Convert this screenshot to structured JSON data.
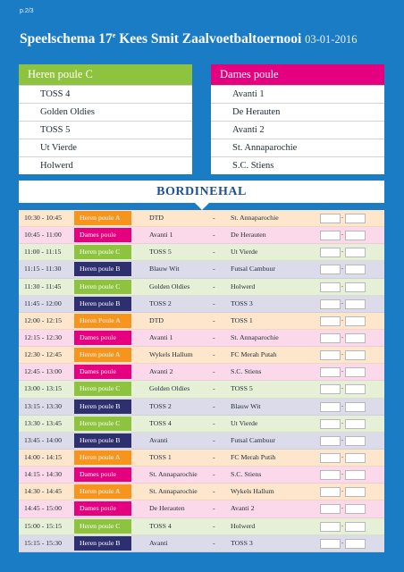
{
  "page_label": "p.2/3",
  "title": {
    "main": "Speelschema 17",
    "sup": "e",
    "rest": " Kees Smit Zaalvoetbaltoernooi ",
    "date": "03-01-2016"
  },
  "poules": {
    "left": {
      "name": "Heren poule C",
      "color": "#8dc33e",
      "teams": [
        "TOSS 4",
        "Golden Oldies",
        "TOSS 5",
        "Ut Vierde",
        "Holwerd"
      ]
    },
    "right": {
      "name": "Dames poule",
      "color": "#e4007f",
      "teams": [
        "Avanti 1",
        "De Herauten",
        "Avanti 2",
        "St. Annaparochie",
        "S.C. Stiens"
      ]
    }
  },
  "hall": "BORDINEHAL",
  "poule_colors": {
    "A": "#f7941d",
    "C": "#8dc33e",
    "B": "#2e2f6e",
    "D": "#e4007f"
  },
  "row_tints": {
    "A": "#fde6cc",
    "C": "#e6f0d6",
    "B": "#dcdbea",
    "D": "#fbd9ea"
  },
  "matches": [
    {
      "time": "10:30  -  10:45",
      "poule": "Heren poule A",
      "k": "A",
      "home": "DTD",
      "away": "St. Annaparochie"
    },
    {
      "time": "10:45  -  11:00",
      "poule": "Dames poule",
      "k": "D",
      "home": "Avanti 1",
      "away": "De Herauten"
    },
    {
      "time": "11:00  -  11:15",
      "poule": "Heren poule C",
      "k": "C",
      "home": "TOSS 5",
      "away": "Ut Vierde"
    },
    {
      "time": "11:15  -  11:30",
      "poule": "Heren poule B",
      "k": "B",
      "home": "Blauw Wit",
      "away": "Futsal Cambuur"
    },
    {
      "time": "11:30  -  11:45",
      "poule": "Heren poule C",
      "k": "C",
      "home": "Golden Oldies",
      "away": "Holwerd"
    },
    {
      "time": "11:45  -  12:00",
      "poule": "Heren poule B",
      "k": "B",
      "home": "TOSS 2",
      "away": "TOSS 3"
    },
    {
      "time": "12:00  -  12:15",
      "poule": "Heren Poule A",
      "k": "A",
      "home": "DTD",
      "away": "TOSS 1"
    },
    {
      "time": "12:15  -  12:30",
      "poule": "Dames poule",
      "k": "D",
      "home": "Avanti 1",
      "away": "St. Annaparochie"
    },
    {
      "time": "12:30  -  12:45",
      "poule": "Heren poule A",
      "k": "A",
      "home": "Wykels Hallum",
      "away": "FC Merah Putah"
    },
    {
      "time": "12:45  -  13:00",
      "poule": "Dames poule",
      "k": "D",
      "home": "Avanti 2",
      "away": "S.C. Stiens"
    },
    {
      "time": "13:00  -  13:15",
      "poule": "Heren poule C",
      "k": "C",
      "home": "Golden Oldies",
      "away": "TOSS 5"
    },
    {
      "time": "13:15  -  13:30",
      "poule": "Heren poule B",
      "k": "B",
      "home": "TOSS 2",
      "away": "Blauw Wit"
    },
    {
      "time": "13:30  -  13:45",
      "poule": "Heren poule C",
      "k": "C",
      "home": "TOSS 4",
      "away": "Ut Vierde"
    },
    {
      "time": "13:45  -  14:00",
      "poule": "Heren poule B",
      "k": "B",
      "home": "Avanti",
      "away": "Futsal Cambuur"
    },
    {
      "time": "14:00  -  14:15",
      "poule": "Heren poule A",
      "k": "A",
      "home": "TOSS 1",
      "away": "FC Merah Putih"
    },
    {
      "time": "14:15  -  14:30",
      "poule": "Dames poule",
      "k": "D",
      "home": "St. Annaparochie",
      "away": "S.C. Stiens"
    },
    {
      "time": "14:30  -  14:45",
      "poule": "Heren poule A",
      "k": "A",
      "home": "St. Annaparochie",
      "away": "Wykels Hallum"
    },
    {
      "time": "14:45  -  15:00",
      "poule": "Dames poule",
      "k": "D",
      "home": "De Herauten",
      "away": "Avanti 2"
    },
    {
      "time": "15:00  -  15:15",
      "poule": "Heren poule  C",
      "k": "C",
      "home": "TOSS 4",
      "away": "Holwerd"
    },
    {
      "time": "15:15  -  15:30",
      "poule": "Heren poule B",
      "k": "B",
      "home": "Avanti",
      "away": "TOSS 3"
    }
  ],
  "dash": "-",
  "score_sep": "-"
}
